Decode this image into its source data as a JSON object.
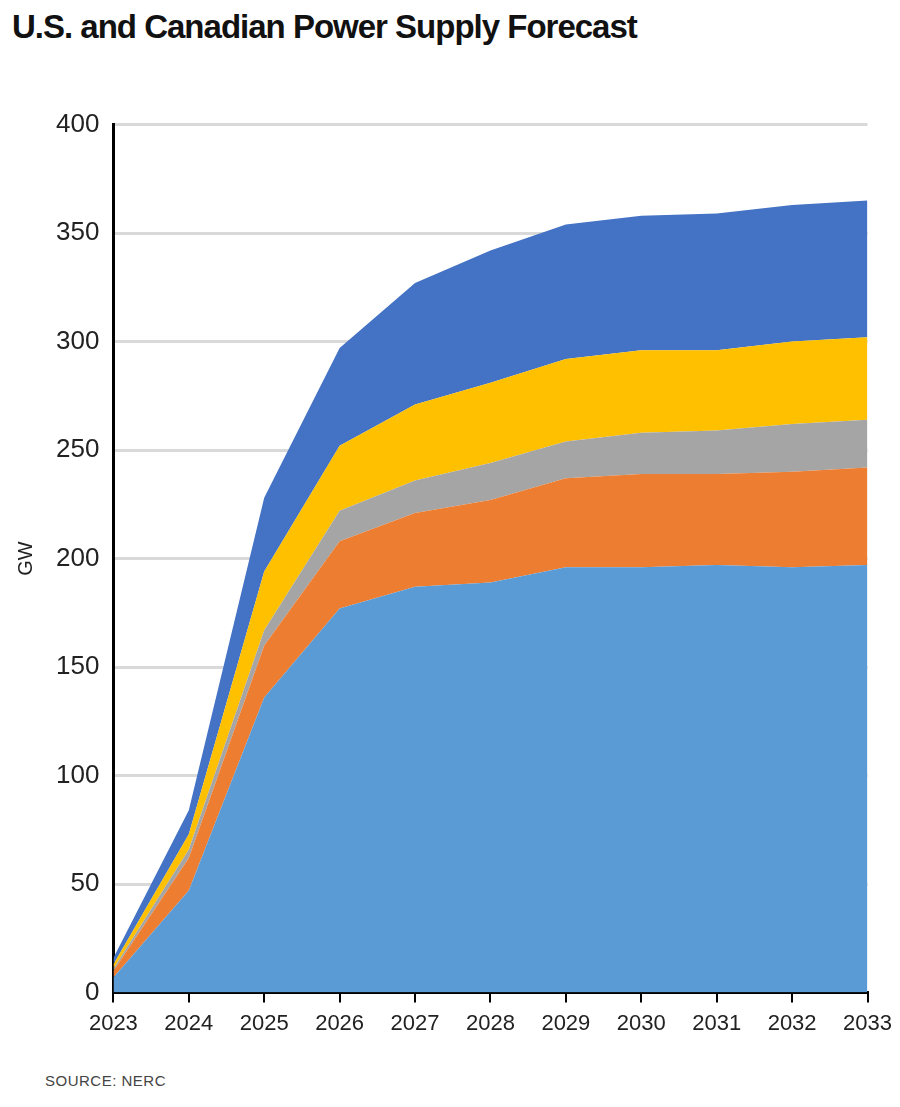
{
  "chart_data": {
    "type": "area",
    "title": "U.S. and Canadian Power Supply Forecast",
    "source": "SOURCE: NERC",
    "y_label": "GW",
    "categories": [
      "2023",
      "2024",
      "2025",
      "2026",
      "2027",
      "2028",
      "2029",
      "2030",
      "2031",
      "2032",
      "2033"
    ],
    "stacked": true,
    "grid": true,
    "ylim": [
      0,
      400
    ],
    "yticks": [
      0,
      50,
      100,
      150,
      200,
      250,
      300,
      350,
      400
    ],
    "series": [
      {
        "color": "#5b9bd5",
        "values": [
          7,
          47,
          136,
          177,
          187,
          189,
          196,
          196,
          197,
          196,
          197
        ]
      },
      {
        "color": "#ed7d31",
        "values": [
          3,
          15,
          24,
          31,
          34,
          38,
          41,
          43,
          42,
          44,
          45
        ]
      },
      {
        "color": "#a5a5a5",
        "values": [
          1,
          4,
          7,
          14,
          15,
          17,
          17,
          19,
          20,
          22,
          22
        ]
      },
      {
        "color": "#ffc000",
        "values": [
          2,
          7,
          27,
          30,
          35,
          37,
          38,
          38,
          37,
          38,
          38
        ]
      },
      {
        "color": "#4472c4",
        "values": [
          3,
          11,
          34,
          45,
          56,
          61,
          62,
          62,
          63,
          63,
          63
        ]
      }
    ]
  }
}
